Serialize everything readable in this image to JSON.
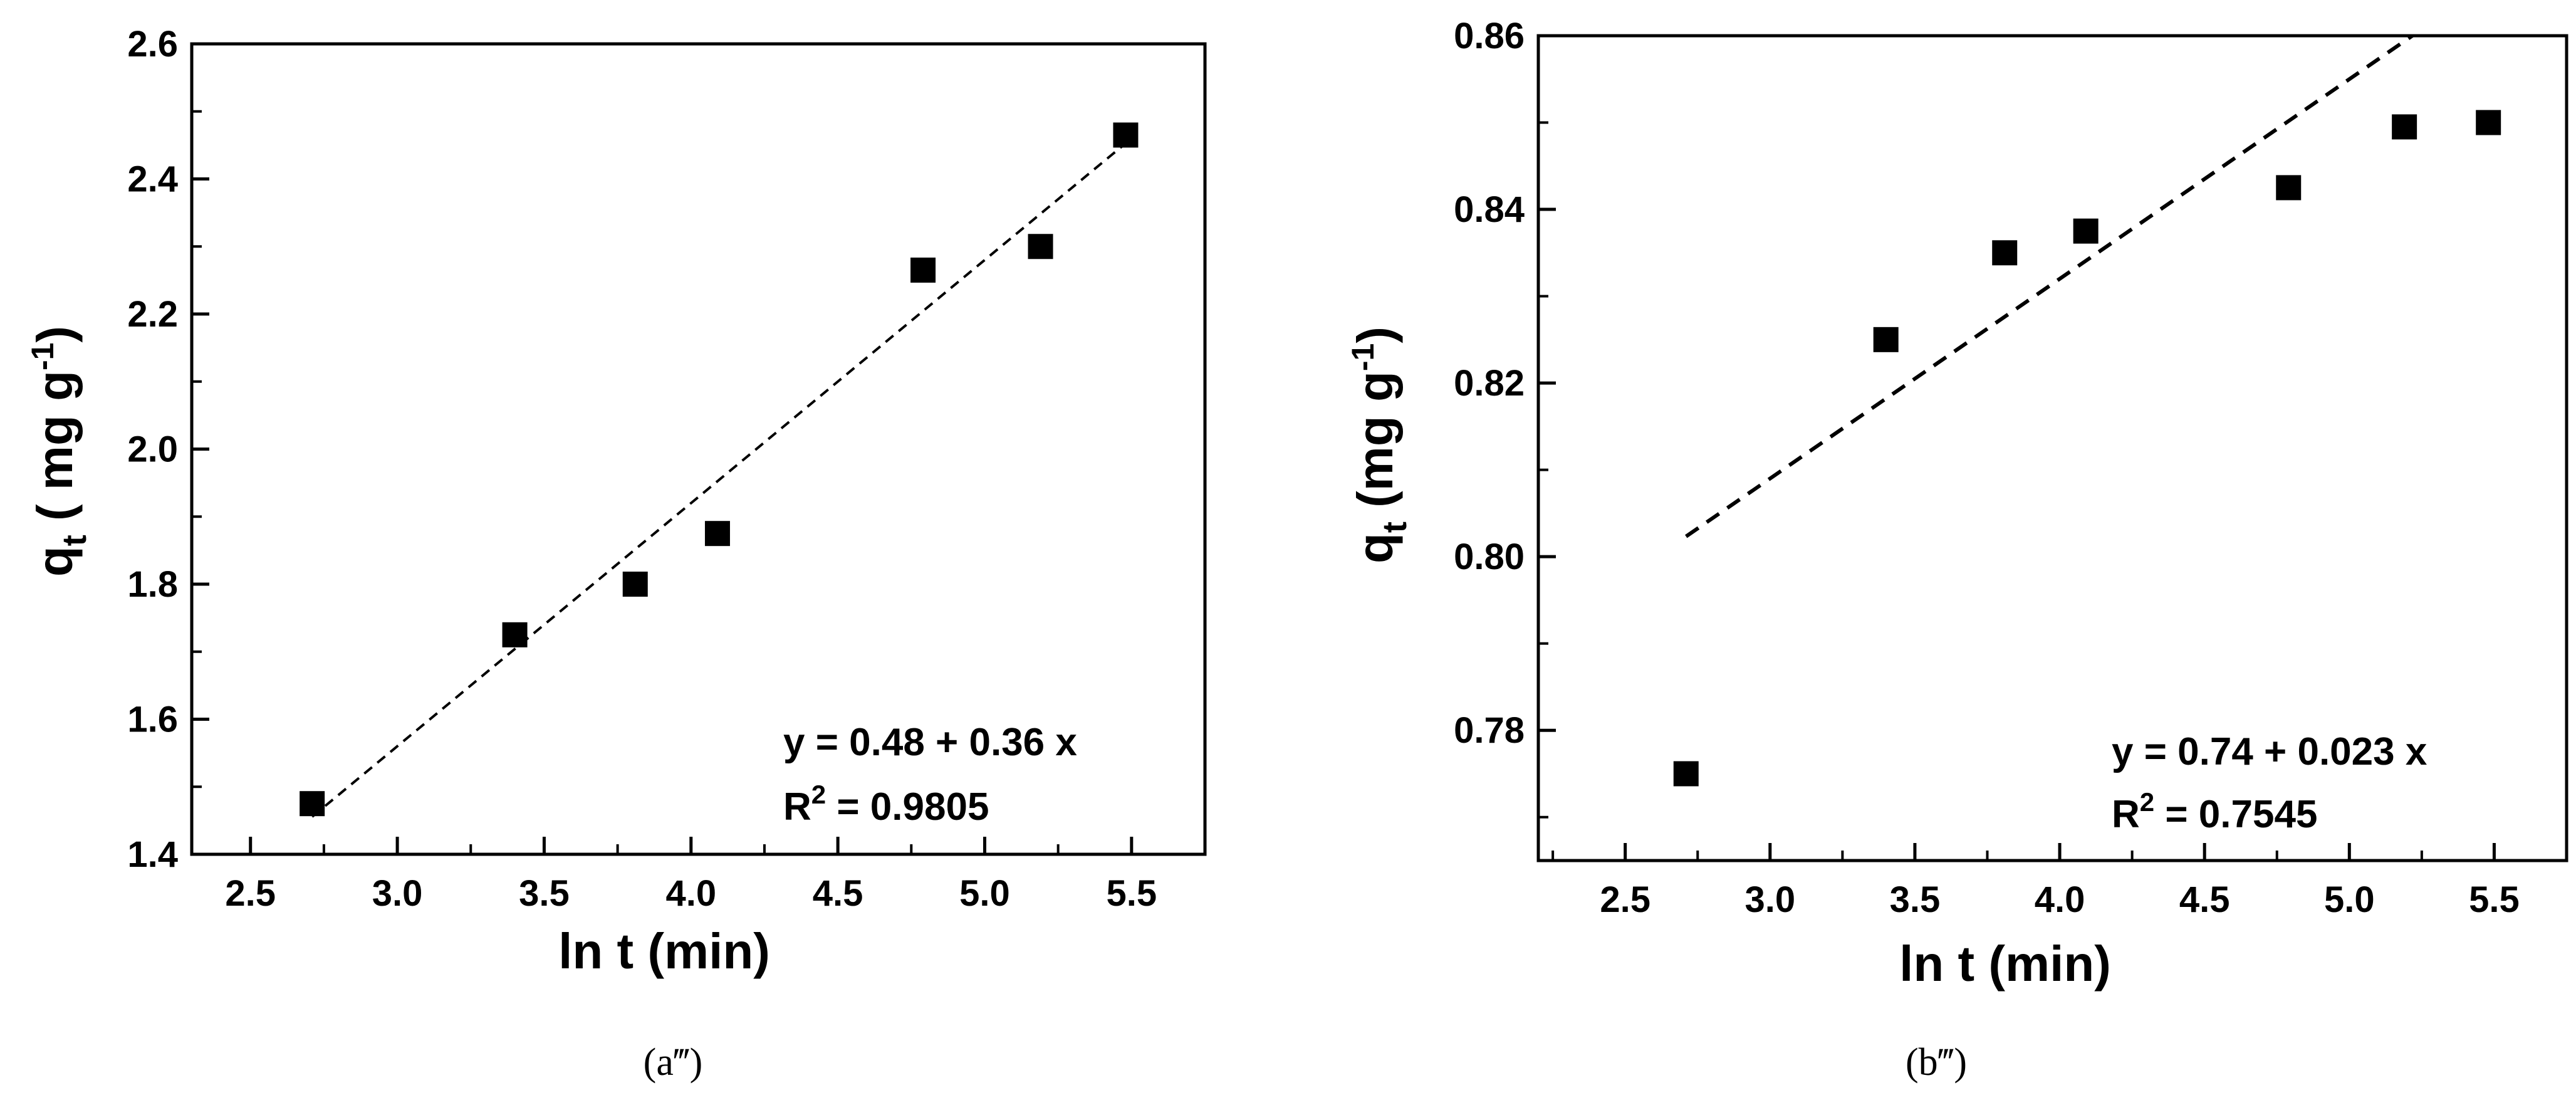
{
  "chart_data": [
    {
      "type": "scatter",
      "panel_label": "(a‴)",
      "xlabel": "ln t (min)",
      "ylabel": {
        "main": "q",
        "sub": "t",
        "rest": " ( mg g",
        "sup": "-1",
        "close": ")"
      },
      "xlim": [
        2.3,
        5.75
      ],
      "ylim": [
        1.4,
        2.6
      ],
      "xticks": [
        "2.5",
        "3.0",
        "3.5",
        "4.0",
        "4.5",
        "5.0",
        "5.5"
      ],
      "yticks": [
        "1.4",
        "1.6",
        "1.8",
        "2.0",
        "2.2",
        "2.4",
        "2.6"
      ],
      "points": {
        "x": [
          2.71,
          3.4,
          3.81,
          4.09,
          4.79,
          5.19,
          5.48
        ],
        "y": [
          1.475,
          1.725,
          1.8,
          1.875,
          2.265,
          2.3,
          2.465
        ]
      },
      "fit_line": {
        "intercept": 0.48,
        "slope": 0.36,
        "x_range": [
          2.71,
          5.48
        ]
      },
      "equation": "y = 0.48 + 0.36 x",
      "r2": {
        "label": "R",
        "sup": "2",
        "value": " = 0.9805"
      },
      "grid": false,
      "marker": "square",
      "color": "#000000"
    },
    {
      "type": "scatter",
      "panel_label": "(b‴)",
      "xlabel": "ln t (min)",
      "ylabel": {
        "main": "q",
        "sub": "t",
        "rest": " (mg g",
        "sup": "-1",
        "close": ")"
      },
      "xlim": [
        2.2,
        5.75
      ],
      "ylim": [
        0.765,
        0.86
      ],
      "xticks": [
        "2.5",
        "3.0",
        "3.5",
        "4.0",
        "4.5",
        "5.0",
        "5.5"
      ],
      "yticks": [
        "0.78",
        "0.80",
        "0.82",
        "0.84",
        "0.86"
      ],
      "points": {
        "x": [
          2.71,
          3.4,
          3.81,
          4.09,
          4.79,
          5.19,
          5.48
        ],
        "y": [
          0.775,
          0.825,
          0.835,
          0.8375,
          0.8425,
          0.8495,
          0.85
        ]
      },
      "fit_line": {
        "intercept": 0.74,
        "slope": 0.023,
        "x_range": [
          2.71,
          5.48
        ]
      },
      "equation": "y = 0.74 + 0.023 x",
      "r2": {
        "label": "R",
        "sup": "2",
        "value": " = 0.7545"
      },
      "grid": false,
      "marker": "square",
      "color": "#000000"
    }
  ]
}
